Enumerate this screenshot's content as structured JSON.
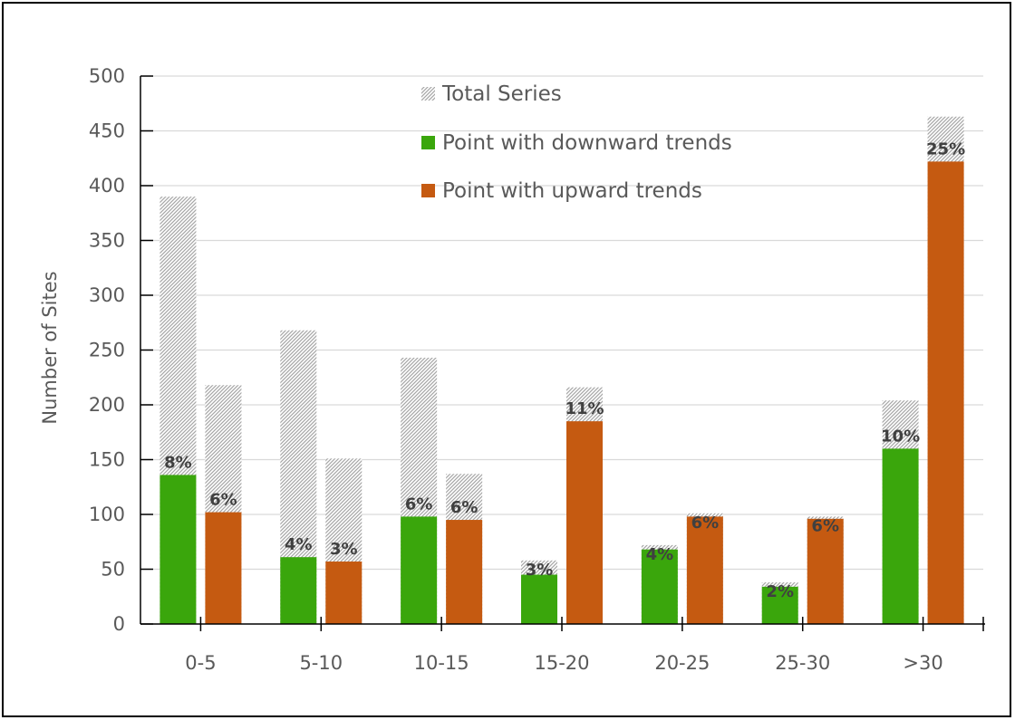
{
  "chart_data": {
    "type": "bar",
    "title": "",
    "xlabel": "",
    "ylabel": "Number of Sites",
    "ylim": [
      0,
      500
    ],
    "yticks": [
      0,
      50,
      100,
      150,
      200,
      250,
      300,
      350,
      400,
      450,
      500
    ],
    "grid": true,
    "legend_position": "top-center",
    "categories": [
      "0-5",
      "5-10",
      "10-15",
      "15-20",
      "20-25",
      "25-30",
      ">30"
    ],
    "legend": {
      "total": "Total Series",
      "down": "Point with downward trends",
      "up": "Point with upward trends"
    },
    "series": [
      {
        "name": "Point with downward trends",
        "role": "down",
        "color": "#3aa60c",
        "values": [
          136,
          61,
          98,
          45,
          68,
          34,
          160
        ],
        "totals": [
          390,
          268,
          243,
          58,
          72,
          38,
          204
        ],
        "labels": [
          "8%",
          "4%",
          "6%",
          "3%",
          "4%",
          "2%",
          "10%"
        ]
      },
      {
        "name": "Point with upward trends",
        "role": "up",
        "color": "#c55a11",
        "values": [
          102,
          57,
          95,
          185,
          98,
          96,
          422
        ],
        "totals": [
          218,
          151,
          137,
          216,
          101,
          98,
          463
        ],
        "labels": [
          "6%",
          "3%",
          "6%",
          "11%",
          "6%",
          "6%",
          "25%"
        ]
      }
    ]
  }
}
